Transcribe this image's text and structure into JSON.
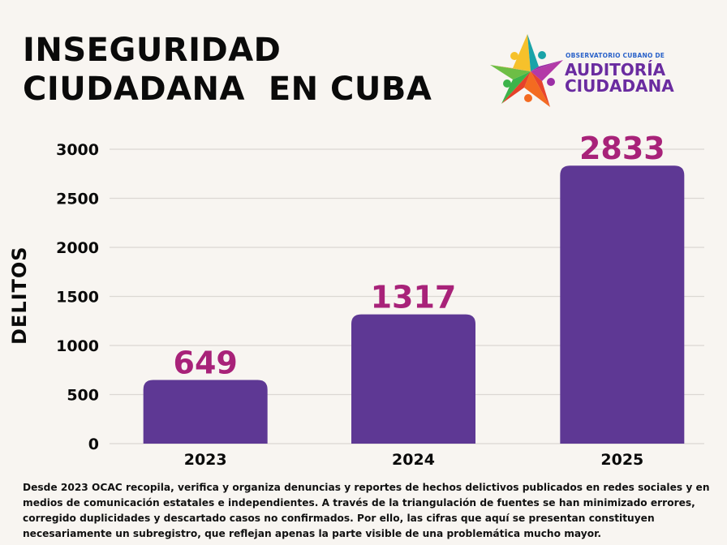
{
  "header": {
    "title_line1": "INSEGURIDAD",
    "title_line2": "CIUDADANA  EN CUBA"
  },
  "logo": {
    "small_text": "OBSERVATORIO CUBANO DE",
    "line1": "AUDITORÍA",
    "line2": "CIUDADANA",
    "colors": {
      "text_small": "#2a62c9",
      "text_big": "#6a2ca0"
    }
  },
  "colors": {
    "background": "#f8f5f1",
    "bar": "#5e3894",
    "data_label": "#a82279",
    "gridline": "#dcd8d3",
    "text": "#0a0a0a"
  },
  "chart_data": {
    "type": "bar",
    "title": "INSEGURIDAD CIUDADANA EN CUBA",
    "xlabel": "",
    "ylabel": "DELITOS",
    "categories": [
      "2023",
      "2024",
      "2025"
    ],
    "values": [
      649,
      1317,
      2833
    ],
    "data_labels": [
      "649",
      "1317",
      "2833"
    ],
    "ylim": [
      0,
      3000
    ],
    "yticks": [
      0,
      500,
      1000,
      1500,
      2000,
      2500,
      3000
    ],
    "ytick_labels": [
      "0",
      "500",
      "1000",
      "1500",
      "2000",
      "2500",
      "3000"
    ],
    "grid": true,
    "legend": "none"
  },
  "footnote": {
    "lines": [
      "Desde 2023 OCAC recopila, verifica y organiza denuncias y reportes de hechos delictivos publicados en redes sociales y en",
      "medios de comunicación estatales e independientes. A través de la triangulación de fuentes se han minimizado errores,",
      "corregido duplicidades y descartado casos no confirmados. Por ello, las cifras que aquí se presentan constituyen",
      "necesariamente un subregistro, que reflejan apenas la parte visible de una problemática mucho mayor."
    ]
  }
}
